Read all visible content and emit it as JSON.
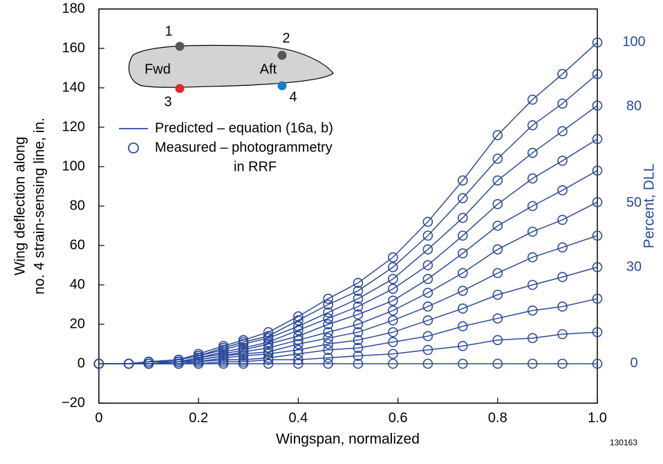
{
  "chart_data": {
    "type": "line",
    "xlabel": "Wingspan, normalized",
    "ylabel": [
      "Wing deflection along",
      "no. 4 strain-sensing line, in."
    ],
    "y2label": "Percent, DLL",
    "figure_id": "130163",
    "color": "#2b4a9b",
    "xlim": [
      0,
      1
    ],
    "xticks": [
      0,
      0.2,
      0.4,
      0.6,
      0.8,
      {
        "value": 1,
        "label": "1.0"
      }
    ],
    "ylim": [
      -20,
      180
    ],
    "yticks": [
      {
        "value": -20,
        "label": "−20"
      },
      0,
      20,
      40,
      60,
      80,
      100,
      120,
      140,
      160,
      180
    ],
    "y2lim": [
      -12.3,
      110.4
    ],
    "y2ticks": [
      0,
      30,
      50,
      80,
      100
    ],
    "legend": [
      {
        "label": "Predicted – equation (16a, b)",
        "marker": "line"
      },
      {
        "label": [
          "Measured – photogrammetry",
          "in RRF"
        ],
        "marker": "circle"
      }
    ],
    "inset": {
      "points": [
        {
          "label": "1",
          "color": "#555555"
        },
        {
          "label": "2",
          "color": "#555555"
        },
        {
          "label": "3",
          "color": "#e8232a"
        },
        {
          "label": "4",
          "color": "#1a7ac4"
        }
      ],
      "texts": [
        "Fwd",
        "Aft"
      ]
    },
    "x": [
      0,
      0.06,
      0.1,
      0.16,
      0.2,
      0.25,
      0.29,
      0.34,
      0.4,
      0.46,
      0.52,
      0.59,
      0.66,
      0.73,
      0.8,
      0.87,
      0.93,
      1.0
    ],
    "series": [
      {
        "values": [
          0,
          0,
          0,
          0,
          0,
          0,
          0,
          0,
          0,
          0,
          0,
          0,
          0,
          0,
          0,
          0,
          0,
          0
        ]
      },
      {
        "values": [
          0,
          0,
          0,
          0,
          0,
          1,
          1,
          2,
          2,
          3,
          4,
          5,
          7,
          9,
          12,
          13,
          15,
          16
        ]
      },
      {
        "values": [
          0,
          0,
          0,
          0,
          1,
          2,
          2,
          3,
          5,
          7,
          8,
          11,
          14,
          19,
          23,
          27,
          29,
          33
        ]
      },
      {
        "values": [
          0,
          0,
          0,
          1,
          1,
          3,
          4,
          5,
          7,
          10,
          12,
          16,
          22,
          28,
          35,
          40,
          44,
          49
        ]
      },
      {
        "values": [
          0,
          0,
          0,
          1,
          2,
          4,
          5,
          6,
          10,
          13,
          16,
          22,
          29,
          37,
          46,
          54,
          59,
          65
        ]
      },
      {
        "values": [
          0,
          0,
          0,
          1,
          2,
          4,
          6,
          8,
          12,
          16,
          20,
          27,
          36,
          46,
          58,
          67,
          73,
          82
        ]
      },
      {
        "values": [
          0,
          0,
          1,
          1,
          3,
          5,
          7,
          10,
          14,
          20,
          25,
          32,
          43,
          56,
          70,
          80,
          88,
          98
        ]
      },
      {
        "values": [
          0,
          0,
          1,
          1,
          3,
          6,
          8,
          11,
          17,
          23,
          29,
          38,
          50,
          65,
          81,
          94,
          103,
          114
        ]
      },
      {
        "values": [
          0,
          0,
          1,
          2,
          4,
          7,
          10,
          13,
          19,
          26,
          33,
          43,
          58,
          74,
          93,
          107,
          118,
          131
        ]
      },
      {
        "values": [
          0,
          0,
          1,
          2,
          4,
          8,
          11,
          14,
          22,
          30,
          37,
          49,
          65,
          84,
          104,
          121,
          132,
          147
        ]
      },
      {
        "values": [
          0,
          0,
          1,
          2,
          5,
          9,
          12,
          16,
          24,
          33,
          41,
          54,
          72,
          93,
          116,
          134,
          147,
          163
        ]
      }
    ]
  }
}
